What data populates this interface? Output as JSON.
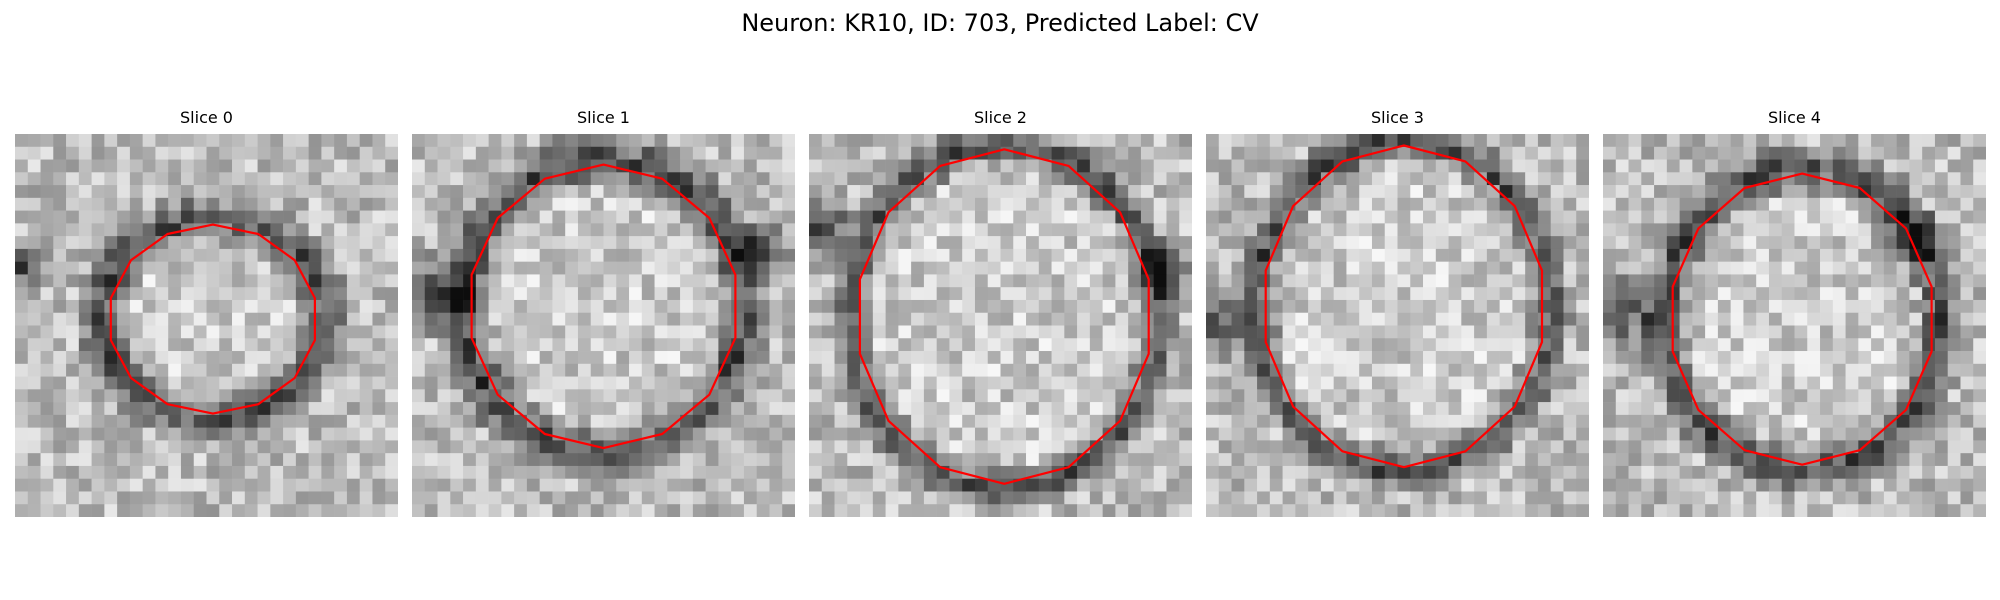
{
  "figure": {
    "suptitle": "Neuron: KR10, ID: 703, Predicted Label: CV",
    "contour_color": "#ff0000",
    "colormap": "gray",
    "slices": [
      {
        "title": "Slice 0"
      },
      {
        "title": "Slice 1"
      },
      {
        "title": "Slice 2"
      },
      {
        "title": "Slice 3"
      },
      {
        "title": "Slice 4"
      }
    ]
  }
}
